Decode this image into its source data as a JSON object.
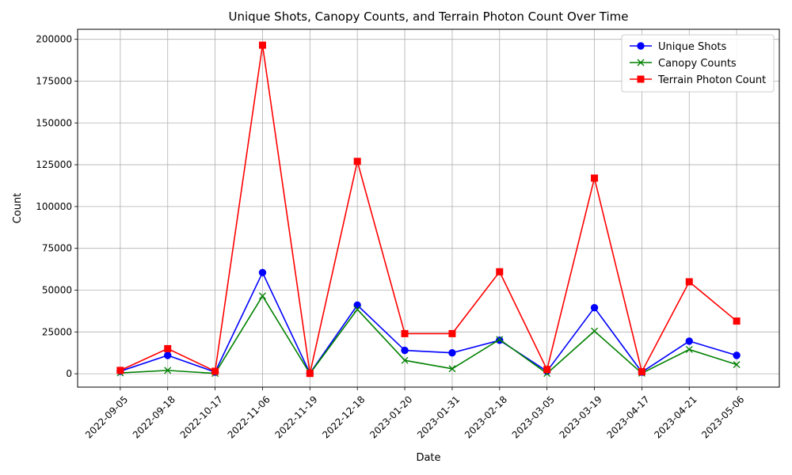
{
  "chart_data": {
    "type": "line",
    "title": "Unique Shots, Canopy Counts, and Terrain Photon Count Over Time",
    "xlabel": "Date",
    "ylabel": "Count",
    "categories": [
      "2022-09-05",
      "2022-09-18",
      "2022-10-17",
      "2022-11-06",
      "2022-11-19",
      "2022-12-18",
      "2023-01-20",
      "2023-01-31",
      "2023-02-18",
      "2023-03-05",
      "2023-03-19",
      "2023-04-17",
      "2023-04-21",
      "2023-05-06"
    ],
    "ylim": [
      -8000,
      206000
    ],
    "yticks": [
      0,
      25000,
      50000,
      75000,
      100000,
      125000,
      150000,
      175000,
      200000
    ],
    "grid": true,
    "legend_position": "top-right",
    "series": [
      {
        "name": "Unique Shots",
        "color": "#0000ff",
        "marker": "circle",
        "values": [
          1500,
          11000,
          1000,
          60500,
          300,
          41000,
          14000,
          12500,
          20000,
          1500,
          39500,
          1000,
          19500,
          11000
        ]
      },
      {
        "name": "Canopy Counts",
        "color": "#008000",
        "marker": "x",
        "values": [
          500,
          2000,
          200,
          46500,
          100,
          38500,
          8000,
          3000,
          20500,
          200,
          25500,
          300,
          14500,
          5500
        ]
      },
      {
        "name": "Terrain Photon Count",
        "color": "#ff0000",
        "marker": "square",
        "values": [
          2000,
          15000,
          1500,
          196500,
          200,
          127000,
          24000,
          24000,
          61000,
          2500,
          117000,
          1200,
          55000,
          31500
        ]
      }
    ]
  }
}
